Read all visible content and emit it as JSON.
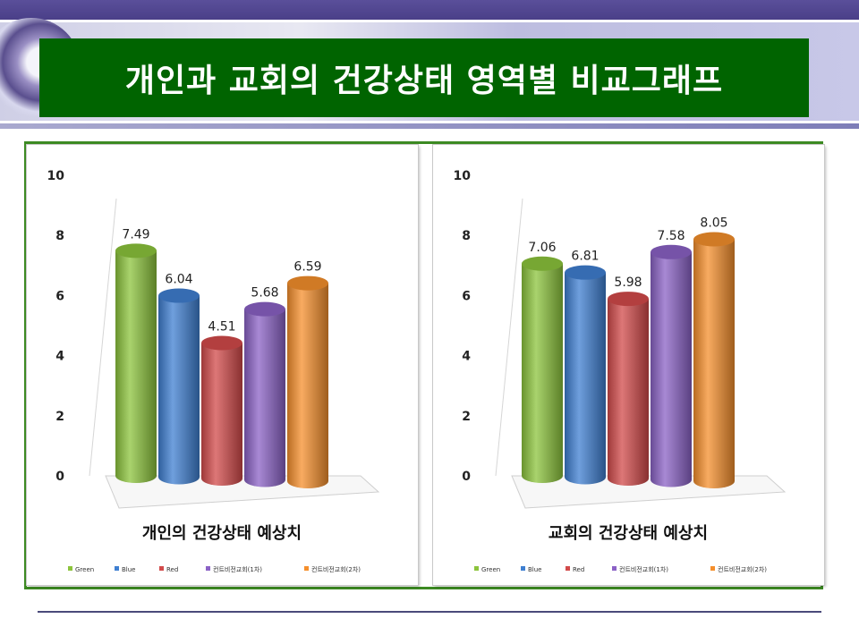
{
  "title": "개인과 교회의 건강상태 영역별 비교그래프",
  "chart_data": [
    {
      "type": "bar",
      "title": "개인의 건강상태 예상치",
      "categories": [
        "Green",
        "Blue",
        "Red",
        "컨트비전교회(1차)",
        "컨트비전교회(2차)"
      ],
      "values": [
        7.49,
        6.04,
        4.51,
        5.68,
        6.59
      ],
      "value_labels": [
        "7.49",
        "6.04",
        "4.51",
        "5.68",
        "6.59"
      ],
      "ylim": [
        0,
        10
      ],
      "yticks": [
        0,
        2,
        4,
        6,
        8,
        10
      ],
      "colors": [
        "#8cc43c",
        "#3f7fd1",
        "#d24a4a",
        "#8b62c6",
        "#f58f2c"
      ],
      "legend": "bottom",
      "grid": false
    },
    {
      "type": "bar",
      "title": "교회의 건강상태 예상치",
      "categories": [
        "Green",
        "Blue",
        "Red",
        "컨트비전교회(1차)",
        "컨트비전교회(2차)"
      ],
      "values": [
        7.06,
        6.81,
        5.98,
        7.58,
        8.05
      ],
      "value_labels": [
        "7.06",
        "6.81",
        "5.98",
        "7.58",
        "8.05"
      ],
      "ylim": [
        0,
        10
      ],
      "yticks": [
        0,
        2,
        4,
        6,
        8,
        10
      ],
      "colors": [
        "#8cc43c",
        "#3f7fd1",
        "#d24a4a",
        "#8b62c6",
        "#f58f2c"
      ],
      "legend": "bottom",
      "grid": false
    }
  ]
}
